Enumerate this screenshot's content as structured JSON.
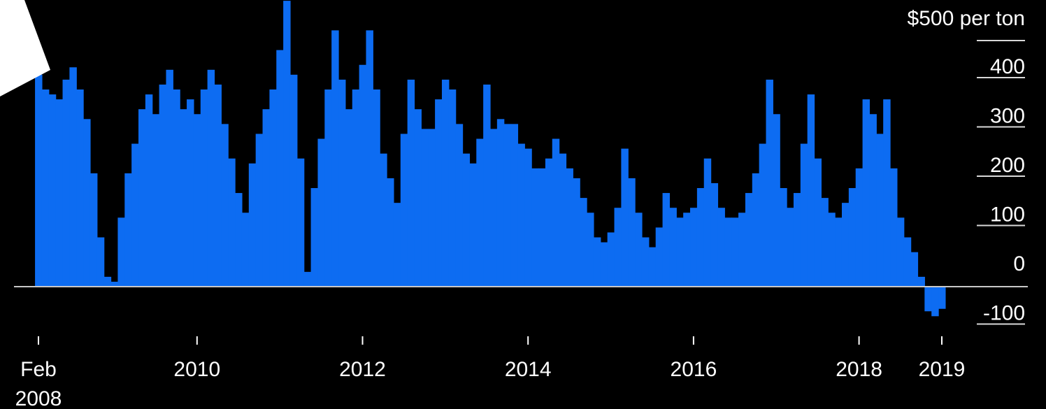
{
  "chart_data": {
    "type": "area",
    "title": "",
    "xlabel": "",
    "ylabel": "",
    "y_unit_label": "$500 per ton",
    "x_tick_labels": [
      {
        "date": "2008-02",
        "line1": "Feb",
        "line2": "2008"
      },
      {
        "date": "2010-01",
        "line1": "2010",
        "line2": ""
      },
      {
        "date": "2012-01",
        "line1": "2012",
        "line2": ""
      },
      {
        "date": "2014-01",
        "line1": "2014",
        "line2": ""
      },
      {
        "date": "2016-01",
        "line1": "2016",
        "line2": ""
      },
      {
        "date": "2018-01",
        "line1": "2018",
        "line2": ""
      },
      {
        "date": "2019-01",
        "line1": "2019",
        "line2": ""
      }
    ],
    "y_ticks": [
      {
        "value": 400,
        "label": "400"
      },
      {
        "value": 300,
        "label": "300"
      },
      {
        "value": 200,
        "label": "200"
      },
      {
        "value": 100,
        "label": "100"
      },
      {
        "value": 0,
        "label": "0"
      },
      {
        "value": -100,
        "label": "-100"
      }
    ],
    "xlim": [
      "2007-11",
      "2019-09"
    ],
    "ylim": [
      -150,
      550
    ],
    "grid": false,
    "colors": {
      "background": "#000000",
      "area": "#0d6cf2",
      "zero_line": "#c8c8c8",
      "text": "#ffffff"
    },
    "series": [
      {
        "x": [
          "2008-02",
          "2008-03",
          "2008-04",
          "2008-05",
          "2008-06",
          "2008-07",
          "2008-08",
          "2008-09",
          "2008-10",
          "2008-11",
          "2008-12",
          "2009-01",
          "2009-02",
          "2009-03",
          "2009-04",
          "2009-05",
          "2009-06",
          "2009-07",
          "2009-08",
          "2009-09",
          "2009-10",
          "2009-11",
          "2009-12",
          "2010-01",
          "2010-02",
          "2010-03",
          "2010-04",
          "2010-05",
          "2010-06",
          "2010-07",
          "2010-08",
          "2010-09",
          "2010-10",
          "2010-11",
          "2010-12",
          "2011-01",
          "2011-02",
          "2011-03",
          "2011-04",
          "2011-05",
          "2011-06",
          "2011-07",
          "2011-08",
          "2011-09",
          "2011-10",
          "2011-11",
          "2011-12",
          "2012-01",
          "2012-02",
          "2012-03",
          "2012-04",
          "2012-05",
          "2012-06",
          "2012-07",
          "2012-08",
          "2012-09",
          "2012-10",
          "2012-11",
          "2012-12",
          "2013-01",
          "2013-02",
          "2013-03",
          "2013-04",
          "2013-05",
          "2013-06",
          "2013-07",
          "2013-08",
          "2013-09",
          "2013-10",
          "2013-11",
          "2013-12",
          "2014-01",
          "2014-02",
          "2014-03",
          "2014-04",
          "2014-05",
          "2014-06",
          "2014-07",
          "2014-08",
          "2014-09",
          "2014-10",
          "2014-11",
          "2014-12",
          "2015-01",
          "2015-02",
          "2015-03",
          "2015-04",
          "2015-05",
          "2015-06",
          "2015-07",
          "2015-08",
          "2015-09",
          "2015-10",
          "2015-11",
          "2015-12",
          "2016-01",
          "2016-02",
          "2016-03",
          "2016-04",
          "2016-05",
          "2016-06",
          "2016-07",
          "2016-08",
          "2016-09",
          "2016-10",
          "2016-11",
          "2016-12",
          "2017-01",
          "2017-02",
          "2017-03",
          "2017-04",
          "2017-05",
          "2017-06",
          "2017-07",
          "2017-08",
          "2017-09",
          "2017-10",
          "2017-11",
          "2017-12",
          "2018-01",
          "2018-02",
          "2018-03",
          "2018-04",
          "2018-05",
          "2018-06",
          "2018-07",
          "2018-08",
          "2018-09",
          "2018-10",
          "2018-11",
          "2018-12",
          "2019-01"
        ],
        "values": [
          430,
          400,
          390,
          380,
          420,
          445,
          400,
          340,
          230,
          100,
          20,
          10,
          140,
          230,
          290,
          360,
          390,
          350,
          410,
          440,
          400,
          360,
          380,
          350,
          400,
          440,
          410,
          330,
          260,
          190,
          150,
          250,
          310,
          360,
          400,
          480,
          580,
          430,
          260,
          30,
          200,
          300,
          400,
          520,
          420,
          360,
          400,
          450,
          520,
          400,
          270,
          220,
          170,
          310,
          420,
          360,
          320,
          320,
          380,
          420,
          400,
          330,
          270,
          250,
          300,
          410,
          320,
          340,
          330,
          330,
          290,
          280,
          240,
          240,
          260,
          300,
          270,
          240,
          220,
          180,
          150,
          100,
          90,
          110,
          160,
          280,
          220,
          150,
          100,
          80,
          120,
          190,
          160,
          140,
          150,
          160,
          200,
          260,
          210,
          160,
          140,
          140,
          150,
          190,
          230,
          290,
          420,
          350,
          200,
          160,
          190,
          290,
          390,
          260,
          180,
          150,
          140,
          170,
          200,
          240,
          380,
          350,
          310,
          380,
          240,
          140,
          100,
          70,
          20,
          -50,
          -60,
          -45
        ]
      }
    ]
  }
}
